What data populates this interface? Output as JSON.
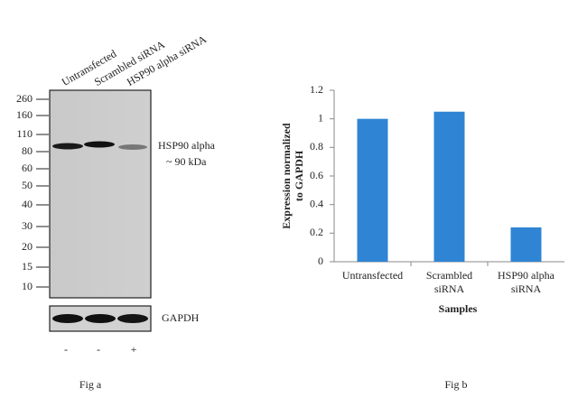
{
  "blot": {
    "lanes": [
      "Untransfected",
      "Scrambled siRNA",
      "HSP90 alpha siRNA"
    ],
    "markers": [
      "260",
      "160",
      "110",
      "80",
      "60",
      "50",
      "40",
      "30",
      "20",
      "15",
      "10"
    ],
    "band_label": "HSP90 alpha",
    "band_size": "~ 90 kDa",
    "control_label": "GAPDH",
    "treatments": [
      "-",
      "-",
      "+"
    ],
    "caption": "Fig a"
  },
  "chart_data": {
    "type": "bar",
    "categories": [
      "Untransfected",
      "Scrambled siRNA",
      "HSP90 alpha siRNA"
    ],
    "values": [
      1.0,
      1.05,
      0.24
    ],
    "color": "#2f84d4",
    "ylim": [
      0,
      1.2
    ],
    "yticks": [
      0,
      0.2,
      0.4,
      0.6,
      0.8,
      1,
      1.2
    ],
    "ylabel": [
      "Expression normalized",
      "to GAPDH"
    ],
    "xlabel": "Samples",
    "grid": false,
    "caption": "Fig b"
  }
}
